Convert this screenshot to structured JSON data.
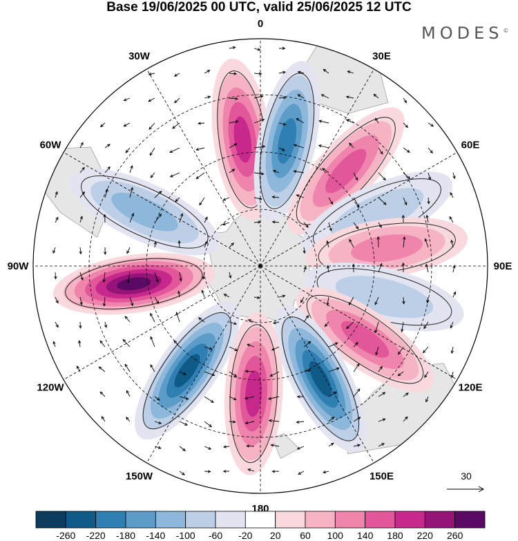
{
  "title": "Base 19/06/2025 00 UTC, valid 25/06/2025 12 UTC",
  "brand": {
    "name": "MODES",
    "mark": "©"
  },
  "map": {
    "projection": "south-polar-stereographic",
    "longitude_labels": [
      {
        "text": "0",
        "lon": 0
      },
      {
        "text": "30E",
        "lon": 30
      },
      {
        "text": "60E",
        "lon": 60
      },
      {
        "text": "90E",
        "lon": 90
      },
      {
        "text": "120E",
        "lon": 120
      },
      {
        "text": "150E",
        "lon": 150
      },
      {
        "text": "180",
        "lon": 180
      },
      {
        "text": "150W",
        "lon": -150
      },
      {
        "text": "120W",
        "lon": -120
      },
      {
        "text": "90W",
        "lon": -90
      },
      {
        "text": "60W",
        "lon": -60
      },
      {
        "text": "30W",
        "lon": -30
      }
    ],
    "anomaly_lobes": [
      {
        "lon": -8,
        "value": 220
      },
      {
        "lon": 12,
        "value": -220
      },
      {
        "lon": 42,
        "value": 160
      },
      {
        "lon": 66,
        "value": -100
      },
      {
        "lon": 82,
        "value": 120
      },
      {
        "lon": 104,
        "value": -100
      },
      {
        "lon": 125,
        "value": 160
      },
      {
        "lon": 152,
        "value": -240
      },
      {
        "lon": 183,
        "value": 220
      },
      {
        "lon": 215,
        "value": -240
      },
      {
        "lon": 262,
        "value": 260
      },
      {
        "lon": 295,
        "value": -140
      }
    ],
    "wind_reference": {
      "label": "30",
      "unit_vector": "30"
    }
  },
  "colorbar": {
    "ticks": [
      "-260",
      "-220",
      "-180",
      "-140",
      "-100",
      "-60",
      "-20",
      "20",
      "60",
      "100",
      "140",
      "180",
      "220",
      "260"
    ],
    "colors": [
      "#0c3b5e",
      "#0f5a86",
      "#2f7fb3",
      "#5b9cc9",
      "#8db7db",
      "#bccfe6",
      "#e2e4f1",
      "#ffffff",
      "#f9d9dd",
      "#f5b3c3",
      "#ef85ac",
      "#e2579a",
      "#c7288b",
      "#961478",
      "#5a0a64"
    ]
  }
}
